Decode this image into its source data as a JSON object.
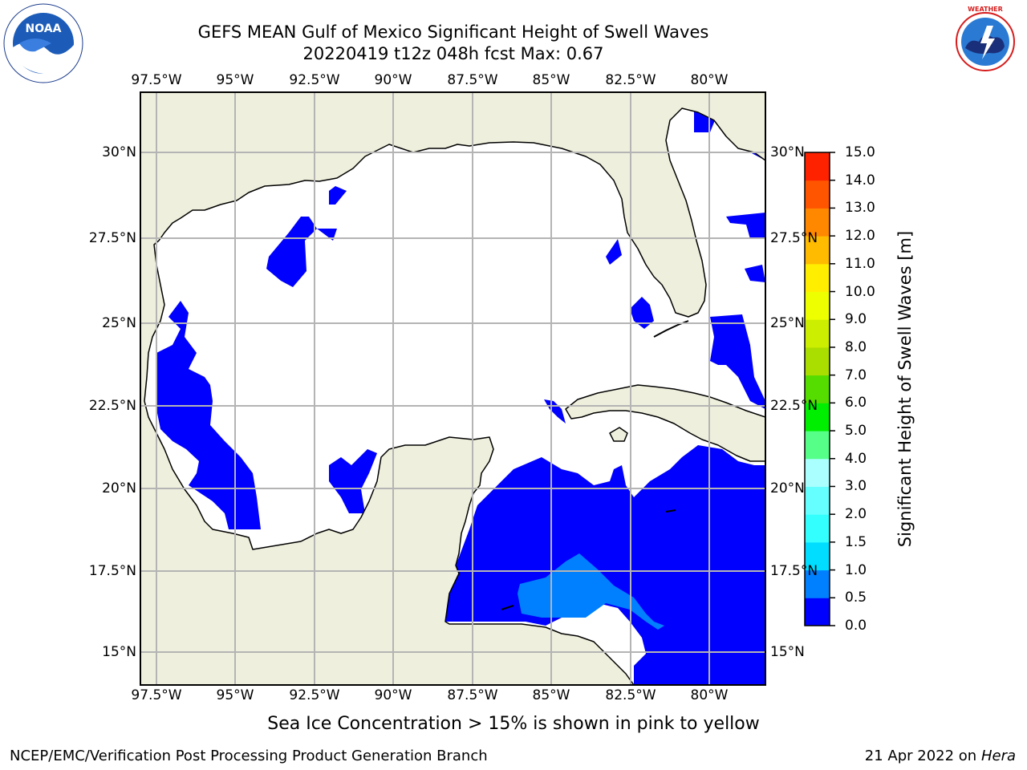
{
  "header": {
    "title_line1": "GEFS MEAN Gulf of Mexico Significant Height of Swell Waves",
    "title_line2": "20220419 t12z 048h fcst   Max: 0.67"
  },
  "logos": {
    "noaa": "NOAA",
    "noaa_ring_text": "NATIONAL OCEANIC AND ATMOSPHERIC ADMINISTRATION · U.S. DEPARTMENT OF COMMERCE",
    "nws_ring_text": "NATIONAL WEATHER SERVICE"
  },
  "map": {
    "lon_labels": [
      "97.5°W",
      "95°W",
      "92.5°W",
      "90°W",
      "87.5°W",
      "85°W",
      "82.5°W",
      "80°W"
    ],
    "lat_labels": [
      "30°N",
      "27.5°N",
      "25°N",
      "22.5°N",
      "20°N",
      "17.5°N",
      "15°N"
    ],
    "colors": {
      "land": "#efefdd",
      "water": "#ffffff",
      "grid": "#b4b4b4",
      "coast": "#000000"
    }
  },
  "colorbar": {
    "label": "Significant Height of Swell Waves [m]",
    "ticks": [
      "0.0",
      "0.5",
      "1.0",
      "1.5",
      "2.0",
      "3.0",
      "4.0",
      "5.0",
      "6.0",
      "7.0",
      "8.0",
      "9.0",
      "10.0",
      "11.0",
      "12.0",
      "13.0",
      "14.0",
      "15.0"
    ],
    "colors": [
      "#0000ff",
      "#0080ff",
      "#00ddff",
      "#33ffff",
      "#66ffff",
      "#aaffff",
      "#55ff88",
      "#00ee00",
      "#55dd00",
      "#aadd00",
      "#ccee00",
      "#eeff00",
      "#ffee00",
      "#ffbb00",
      "#ff8800",
      "#ff5500",
      "#ff2200"
    ]
  },
  "footnote": "Sea Ice Concentration > 15% is shown in pink to yellow",
  "credits": {
    "left": "NCEP/EMC/Verification Post Processing Product Generation Branch",
    "right_date": "21 Apr 2022 on ",
    "right_host": "Hera"
  }
}
